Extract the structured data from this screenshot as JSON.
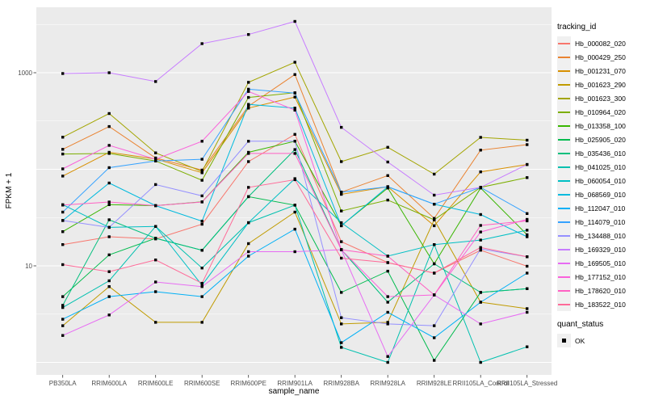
{
  "figure": {
    "background": "#ffffff",
    "panel_bg": "#ebebeb",
    "grid_color": "#ffffff",
    "tick_color": "#333333",
    "tick_label_color": "#4d4d4d",
    "axis_title_color": "#000000",
    "point_color": "#000000"
  },
  "chart_data": {
    "type": "line",
    "title": "",
    "xlabel": "sample_name",
    "ylabel": "FPKM + 1",
    "yscale": "log10",
    "ylim": [
      1,
      4000
    ],
    "grid": true,
    "yticks": [
      {
        "label": "1000",
        "value": 1000
      },
      {
        "label": "10",
        "value": 10
      }
    ],
    "categories": [
      "PB350LA",
      "RRIM600LA",
      "RRIM600LE",
      "RRIM600SE",
      "RRIM600PE",
      "RRIM901LA",
      "RRIM928BA",
      "RRIM928LA",
      "RRIM928LE",
      "RRII105LA_Control",
      "RRII105LA_Stressed"
    ],
    "series": [
      {
        "name": "Hb_000082_020",
        "color": "#F8766D",
        "values": [
          16.6,
          20,
          19,
          27,
          120,
          230,
          17.8,
          10.8,
          8.4,
          14.5,
          9.9
        ]
      },
      {
        "name": "Hb_000429_250",
        "color": "#EA8331",
        "values": [
          161,
          277,
          131,
          98,
          450,
          958,
          58,
          86,
          31,
          158,
          180
        ]
      },
      {
        "name": "Hb_001231_070",
        "color": "#D89000",
        "values": [
          85,
          150,
          128,
          92,
          430,
          560,
          55,
          66,
          26,
          94,
          112
        ]
      },
      {
        "name": "Hb_001623_290",
        "color": "#C09B00",
        "values": [
          2.4,
          6.1,
          2.6,
          2.6,
          17,
          36,
          2.5,
          2.6,
          30,
          4.2,
          3.6
        ]
      },
      {
        "name": "Hb_001623_300",
        "color": "#A3A500",
        "values": [
          215,
          378,
          148,
          95,
          795,
          1285,
          120,
          169,
          89,
          214,
          200
        ]
      },
      {
        "name": "Hb_010964_020",
        "color": "#7CAE00",
        "values": [
          144,
          146,
          122,
          77,
          555,
          620,
          37,
          48,
          30,
          65,
          82
        ]
      },
      {
        "name": "Hb_013358_100",
        "color": "#39B600",
        "values": [
          22.6,
          43,
          42,
          46,
          150,
          195,
          26,
          64,
          10.5,
          64,
          21
        ]
      },
      {
        "name": "Hb_025905_020",
        "color": "#00BB4E",
        "values": [
          4.8,
          13,
          19.3,
          14.5,
          52,
          42.5,
          5.3,
          8.8,
          1.05,
          5.3,
          5.8
        ]
      },
      {
        "name": "Hb_035436_010",
        "color": "#00BF7D",
        "values": [
          3.9,
          30,
          19.3,
          14.5,
          52,
          160,
          14.7,
          4.2,
          10.5,
          5.3,
          5.8
        ]
      },
      {
        "name": "Hb_041025_010",
        "color": "#00C0AF",
        "values": [
          3.7,
          7,
          25.6,
          9.5,
          28,
          42.5,
          1.43,
          1.0,
          16.6,
          1.0,
          1.45
        ]
      },
      {
        "name": "Hb_060054_010",
        "color": "#00BFC4",
        "values": [
          43,
          25,
          25.6,
          6.3,
          28,
          80,
          28,
          12.6,
          16.6,
          18.5,
          23.4
        ]
      },
      {
        "name": "Hb_068569_010",
        "color": "#00BADE",
        "values": [
          29.5,
          72,
          42,
          29,
          470,
          430,
          26,
          66,
          43.5,
          34,
          20
        ]
      },
      {
        "name": "Hb_112047_010",
        "color": "#00B0F6",
        "values": [
          2.8,
          4.8,
          5.4,
          4.8,
          12.6,
          24,
          1.6,
          3.3,
          1.8,
          4.2,
          8.4
        ]
      },
      {
        "name": "Hb_114079_010",
        "color": "#35A2FF",
        "values": [
          36,
          104,
          122,
          127,
          675,
          615,
          58,
          66,
          43.5,
          65,
          34.8
        ]
      },
      {
        "name": "Hb_134488_010",
        "color": "#9590FF",
        "values": [
          29.5,
          25,
          69.5,
          53,
          195,
          195,
          2.9,
          2.5,
          2.4,
          15,
          12.4
        ]
      },
      {
        "name": "Hb_169329_010",
        "color": "#C77CFF",
        "values": [
          980,
          1000,
          810,
          2000,
          2490,
          3400,
          272,
          119,
          54,
          65,
          112
        ]
      },
      {
        "name": "Hb_169505_010",
        "color": "#E76BF3",
        "values": [
          1.9,
          3.1,
          6.8,
          6.1,
          14,
          14,
          14.7,
          1.15,
          5.0,
          2.5,
          3.3
        ]
      },
      {
        "name": "Hb_177152_010",
        "color": "#FA62DB",
        "values": [
          101,
          177,
          127,
          195,
          640,
          410,
          14.7,
          4.8,
          5.0,
          22.4,
          30.3
        ]
      },
      {
        "name": "Hb_178620_010",
        "color": "#FF61C3",
        "values": [
          42.6,
          45.8,
          42,
          45.8,
          146,
          146,
          14.7,
          12.6,
          5.0,
          26.2,
          29.2
        ]
      },
      {
        "name": "Hb_183522_010",
        "color": "#FF6A98",
        "values": [
          10.3,
          8.7,
          11.5,
          6.6,
          65,
          78,
          12,
          10.8,
          8.4,
          15.5,
          12.4
        ]
      }
    ],
    "legend": {
      "title": "tracking_id",
      "position": "right"
    },
    "legend2": {
      "title": "quant_status",
      "items": [
        {
          "label": "OK",
          "marker": "black-square"
        }
      ]
    }
  }
}
